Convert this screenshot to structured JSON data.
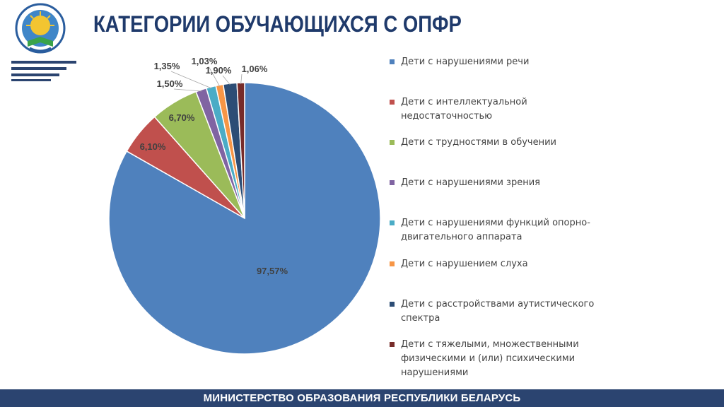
{
  "header": {
    "title": "КАТЕГОРИИ ОБУЧАЮЩИХСЯ С ОПФР",
    "logo_icon": "ministry-emblem-icon"
  },
  "footer": {
    "text": "МИНИСТЕРСТВО ОБРАЗОВАНИЯ РЕСПУБЛИКИ БЕЛАРУСЬ"
  },
  "colors": {
    "title": "#1f3a6b",
    "footer_bg": "#2b4470"
  },
  "chart_data": {
    "type": "pie",
    "title": "",
    "legend_position": "right",
    "slices": [
      {
        "name": "Дети с нарушениями речи",
        "value": 97.57,
        "label": "97,57%",
        "color": "#4f81bd"
      },
      {
        "name": "Дети с интеллектуальной недостаточностью",
        "value": 6.1,
        "label": "6,10%",
        "color": "#c0504d"
      },
      {
        "name": "Дети с трудностями в обучении",
        "value": 6.7,
        "label": "6,70%",
        "color": "#9bbb59"
      },
      {
        "name": "Дети с нарушениями зрения",
        "value": 1.5,
        "label": "1,50%",
        "color": "#8064a2"
      },
      {
        "name": "Дети с нарушениями функций опорно-двигательного аппарата",
        "value": 1.35,
        "label": "1,35%",
        "color": "#4bacc6"
      },
      {
        "name": "Дети с нарушением слуха",
        "value": 1.03,
        "label": "1,03%",
        "color": "#f79646"
      },
      {
        "name": "Дети с расстройствами аутистического спектра",
        "value": 1.9,
        "label": "1,90%",
        "color": "#2c4d75"
      },
      {
        "name": "Дети с тяжелыми, множественными физическими и (или) психическими нарушениями",
        "value": 1.06,
        "label": "1,06%",
        "color": "#772c2a"
      }
    ]
  }
}
